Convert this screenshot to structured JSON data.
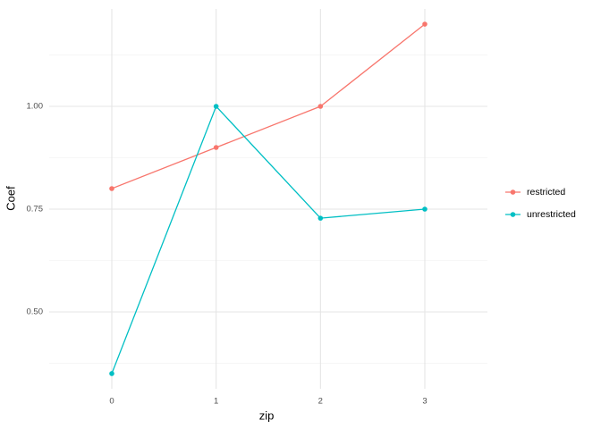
{
  "chart_data": {
    "type": "line",
    "x_label": "zip",
    "y_label": "Coef",
    "categories": [
      "0",
      "1",
      "2",
      "3"
    ],
    "series": [
      {
        "name": "restricted",
        "color": "#F8766D",
        "values": [
          0.8,
          0.9,
          1.0,
          1.2
        ]
      },
      {
        "name": "unrestricted",
        "color": "#00BFC4",
        "values": [
          0.35,
          1.0,
          0.728,
          0.75
        ]
      }
    ],
    "ylim": [
      0.313,
      1.237
    ],
    "yticks": [
      {
        "value": 0.5,
        "label": "0.50"
      },
      {
        "value": 0.75,
        "label": "0.75"
      },
      {
        "value": 1.0,
        "label": "1.00"
      }
    ],
    "y_minor_ticks": [
      0.375,
      0.625,
      0.875,
      1.125
    ],
    "grid": true,
    "legend": "right"
  }
}
